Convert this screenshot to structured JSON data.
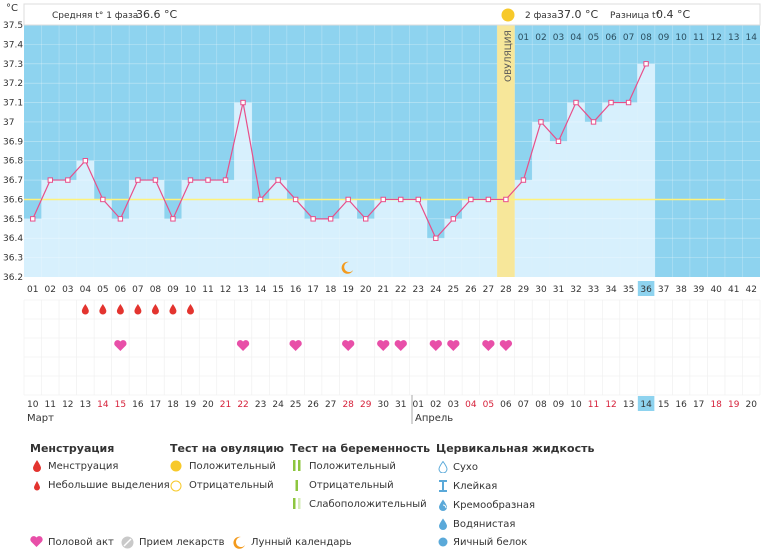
{
  "header": {
    "unit": "°C",
    "phase1_label": "Средняя t° 1 фаза",
    "phase1_value": "36.6 °C",
    "phase2_label": "2 фаза",
    "phase2_value": "37.0 °C",
    "diff_label": "Разница t°",
    "diff_value": "0.4 °C",
    "ovulation_label": "ОВУЛЯЦИЯ"
  },
  "colors": {
    "fill": "#d7f0fd",
    "bg": "#8ed3ef",
    "line": "#e84f8a",
    "ovulation": "#f7e79a",
    "coverline": "#ffef8a"
  },
  "chart_data": {
    "type": "line",
    "ylim": [
      36.2,
      37.5
    ],
    "ytick_labels": [
      "36.2",
      "36.3",
      "36.4",
      "36.5",
      "36.6",
      "36.7",
      "36.8",
      "36.9",
      "37",
      "37.1",
      "37.2",
      "37.3",
      "37.4",
      "37.5"
    ],
    "coverline": 36.6,
    "ovulation_day": 28,
    "current_day": 36,
    "cycle_days": [
      "01",
      "02",
      "03",
      "04",
      "05",
      "06",
      "07",
      "08",
      "09",
      "10",
      "11",
      "12",
      "13",
      "14",
      "15",
      "16",
      "17",
      "18",
      "19",
      "20",
      "21",
      "22",
      "23",
      "24",
      "25",
      "26",
      "27",
      "28",
      "29",
      "30",
      "31",
      "32",
      "33",
      "34",
      "35",
      "36",
      "37",
      "38",
      "39",
      "40",
      "41",
      "42"
    ],
    "phase2_days": [
      "01",
      "02",
      "03",
      "04",
      "05",
      "06",
      "07",
      "08",
      "09",
      "10",
      "11",
      "12",
      "13",
      "14"
    ],
    "temperatures": [
      36.5,
      36.7,
      36.7,
      36.8,
      36.6,
      36.5,
      36.7,
      36.7,
      36.5,
      36.7,
      36.7,
      36.7,
      37.1,
      36.6,
      36.7,
      36.6,
      36.5,
      36.5,
      36.6,
      36.5,
      36.6,
      36.6,
      36.6,
      36.4,
      36.5,
      36.6,
      36.6,
      36.6,
      36.7,
      37.0,
      36.9,
      37.1,
      37.0,
      37.1,
      37.1,
      37.3
    ],
    "menstruation_days": [
      4,
      5,
      6,
      7,
      8,
      9,
      10
    ],
    "intercourse_days": [
      6,
      13,
      16,
      19,
      21,
      22,
      24,
      25,
      27,
      28
    ],
    "moon_day": 19,
    "dates": [
      "10",
      "11",
      "12",
      "13",
      "14",
      "15",
      "16",
      "17",
      "18",
      "19",
      "20",
      "21",
      "22",
      "23",
      "24",
      "25",
      "26",
      "27",
      "28",
      "29",
      "30",
      "31",
      "01",
      "02",
      "03",
      "04",
      "05",
      "06",
      "07",
      "08",
      "09",
      "10",
      "11",
      "12",
      "13",
      "14",
      "15",
      "16",
      "17",
      "18",
      "19",
      "20"
    ],
    "red_date_indices": [
      4,
      5,
      11,
      12,
      18,
      19,
      25,
      26,
      32,
      33,
      39,
      40
    ],
    "month1": "Март",
    "month2": "Апрель"
  },
  "legend": {
    "menstruation_title": "Менструация",
    "menstruation_item": "Менструация",
    "spotting_item": "Небольшие выделения",
    "ovulation_test_title": "Тест на овуляцию",
    "ovulation_positive": "Положительный",
    "ovulation_negative": "Отрицательный",
    "pregnancy_test_title": "Тест на беременность",
    "pregnancy_positive": "Положительный",
    "pregnancy_negative": "Отрицательный",
    "pregnancy_weak": "Слабоположительный",
    "cervical_title": "Цервикальная жидкость",
    "cervical_dry": "Сухо",
    "cervical_sticky": "Клейкая",
    "cervical_creamy": "Кремообразная",
    "cervical_watery": "Водянистая",
    "cervical_eggwhite": "Яичный белок",
    "intercourse": "Половой акт",
    "medication": "Прием лекарств",
    "lunar": "Лунный календарь"
  }
}
